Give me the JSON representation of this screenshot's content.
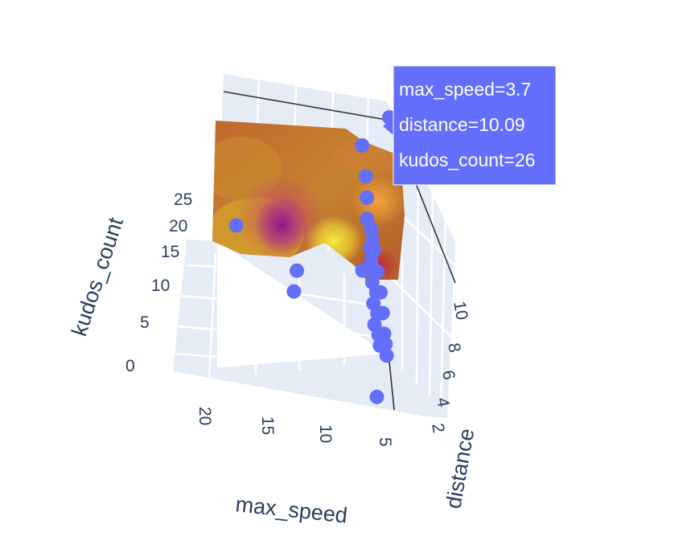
{
  "chart_data": {
    "type": "scatter3d",
    "x_label": "max_speed",
    "y_label": "distance",
    "z_label": "kudos_count",
    "x_ticks": [
      "20",
      "15",
      "10",
      "5"
    ],
    "y_ticks": [
      "10",
      "8",
      "6",
      "4",
      "2"
    ],
    "z_ticks": [
      "25",
      "20",
      "15",
      "10",
      "5",
      "0"
    ],
    "marker_color": "#636efa",
    "surface_colorscale": [
      "#3d0b73",
      "#8e1a84",
      "#c33c7c",
      "#e26a5a",
      "#f4a23f",
      "#f9d43c"
    ],
    "points": [
      {
        "max_speed": 3.7,
        "distance": 10.09,
        "kudos_count": 26
      },
      {
        "max_speed": 20.5,
        "distance": 3.1,
        "kudos_count": 18
      },
      {
        "max_speed": 13.5,
        "distance": 3.3,
        "kudos_count": 13
      },
      {
        "max_speed": 13.8,
        "distance": 3.1,
        "kudos_count": 11
      },
      {
        "max_speed": 6.5,
        "distance": 7.5,
        "kudos_count": 24
      },
      {
        "max_speed": 6.0,
        "distance": 7.0,
        "kudos_count": 21
      },
      {
        "max_speed": 5.8,
        "distance": 6.5,
        "kudos_count": 19
      },
      {
        "max_speed": 5.7,
        "distance": 6.0,
        "kudos_count": 17
      },
      {
        "max_speed": 5.2,
        "distance": 5.8,
        "kudos_count": 16
      },
      {
        "max_speed": 5.0,
        "distance": 5.5,
        "kudos_count": 15
      },
      {
        "max_speed": 4.8,
        "distance": 5.3,
        "kudos_count": 14
      },
      {
        "max_speed": 5.1,
        "distance": 5.0,
        "kudos_count": 13
      },
      {
        "max_speed": 4.6,
        "distance": 4.8,
        "kudos_count": 12
      },
      {
        "max_speed": 4.9,
        "distance": 4.5,
        "kudos_count": 11
      },
      {
        "max_speed": 4.4,
        "distance": 4.3,
        "kudos_count": 10
      },
      {
        "max_speed": 4.7,
        "distance": 4.0,
        "kudos_count": 9
      },
      {
        "max_speed": 4.2,
        "distance": 3.8,
        "kudos_count": 8
      },
      {
        "max_speed": 4.5,
        "distance": 3.5,
        "kudos_count": 7
      },
      {
        "max_speed": 4.0,
        "distance": 3.3,
        "kudos_count": 6
      },
      {
        "max_speed": 3.8,
        "distance": 3.0,
        "kudos_count": 5
      },
      {
        "max_speed": 4.3,
        "distance": 4.6,
        "kudos_count": 12
      },
      {
        "max_speed": 3.9,
        "distance": 4.2,
        "kudos_count": 10
      },
      {
        "max_speed": 3.6,
        "distance": 3.9,
        "kudos_count": 8
      },
      {
        "max_speed": 3.4,
        "distance": 3.6,
        "kudos_count": 6
      },
      {
        "max_speed": 3.2,
        "distance": 3.4,
        "kudos_count": 5
      },
      {
        "max_speed": 3.0,
        "distance": 2.8,
        "kudos_count": 4
      },
      {
        "max_speed": 5.4,
        "distance": 6.2,
        "kudos_count": 14
      },
      {
        "max_speed": 6.2,
        "distance": 5.6,
        "kudos_count": 12
      },
      {
        "max_speed": 4.1,
        "distance": 2.6,
        "kudos_count": 0
      }
    ],
    "hover": {
      "line1": "max_speed=3.7",
      "line2": "distance=10.09",
      "line3": "kudos_count=26"
    }
  }
}
